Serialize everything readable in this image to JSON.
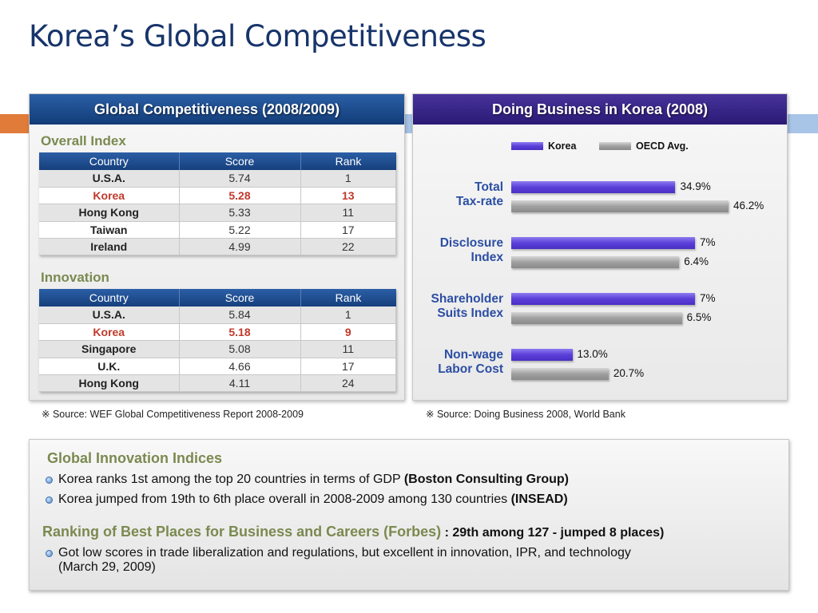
{
  "title": "Korea’s Global Competitiveness",
  "colors": {
    "title": "#17346a",
    "accent_orange": "#e07b3a",
    "accent_blue": "#a8c4e6",
    "korea_bar": "#5a3fd8",
    "oecd_bar": "#a0a0a0",
    "highlight": "#c0392b",
    "section": "#7a8a50",
    "label_blue": "#2c4ea3"
  },
  "left_panel": {
    "header": "Global Competitiveness (2008/2009)",
    "overall": {
      "title": "Overall Index",
      "columns": [
        "Country",
        "Score",
        "Rank"
      ],
      "rows": [
        {
          "country": "U.S.A.",
          "score": "5.74",
          "rank": "1"
        },
        {
          "country": "Korea",
          "score": "5.28",
          "rank": "13"
        },
        {
          "country": "Hong Kong",
          "score": "5.33",
          "rank": "11"
        },
        {
          "country": "Taiwan",
          "score": "5.22",
          "rank": "17"
        },
        {
          "country": "Ireland",
          "score": "4.99",
          "rank": "22"
        }
      ]
    },
    "innovation": {
      "title": "Innovation",
      "columns": [
        "Country",
        "Score",
        "Rank"
      ],
      "rows": [
        {
          "country": "U.S.A.",
          "score": "5.84",
          "rank": "1"
        },
        {
          "country": "Korea",
          "score": "5.18",
          "rank": "9"
        },
        {
          "country": "Singapore",
          "score": "5.08",
          "rank": "11"
        },
        {
          "country": "U.K.",
          "score": "4.66",
          "rank": "17"
        },
        {
          "country": "Hong Kong",
          "score": "4.11",
          "rank": "24"
        }
      ]
    },
    "source": "※ Source: WEF Global Competitiveness Report 2008-2009"
  },
  "right_panel": {
    "header": "Doing Business in Korea (2008)",
    "legend": {
      "korea": "Korea",
      "oecd": "OECD Avg."
    },
    "source": "※ Source: Doing Business 2008, World Bank"
  },
  "chart_data": {
    "type": "bar",
    "orientation": "horizontal",
    "categories": [
      [
        "Total",
        "Tax-rate"
      ],
      [
        "Disclosure",
        "Index"
      ],
      [
        "Shareholder",
        "Suits Index"
      ],
      [
        "Non-wage",
        "Labor Cost"
      ]
    ],
    "series": [
      {
        "name": "Korea",
        "values": [
          34.9,
          7,
          7,
          13.0
        ],
        "labels": [
          "34.9%",
          "7%",
          "7%",
          "13.0%"
        ]
      },
      {
        "name": "OECD Avg.",
        "values": [
          46.2,
          6.4,
          6.5,
          20.7
        ],
        "labels": [
          "46.2%",
          "6.4%",
          "6.5%",
          "20.7%"
        ]
      }
    ],
    "legend_position": "top",
    "grid": false
  },
  "bottom": {
    "heading1": "Global Innovation Indices",
    "bullets1": [
      {
        "text": "Korea ranks 1st among the top 20 countries in terms of GDP ",
        "bold": "(Boston Consulting Group)"
      },
      {
        "text": "Korea jumped from 19th to 6th place overall in 2008-2009 among 130 countries ",
        "bold": "(INSEAD)"
      }
    ],
    "heading2": "Ranking of Best Places for Business and Careers (Forbes)",
    "heading2_suffix": " : 29th  among 127 - jumped 8 places)",
    "bullets2": [
      {
        "line1": "Got low scores in trade liberalization and regulations, but excellent in innovation, IPR, and technology",
        "line2": "(March 29, 2009)"
      }
    ]
  }
}
